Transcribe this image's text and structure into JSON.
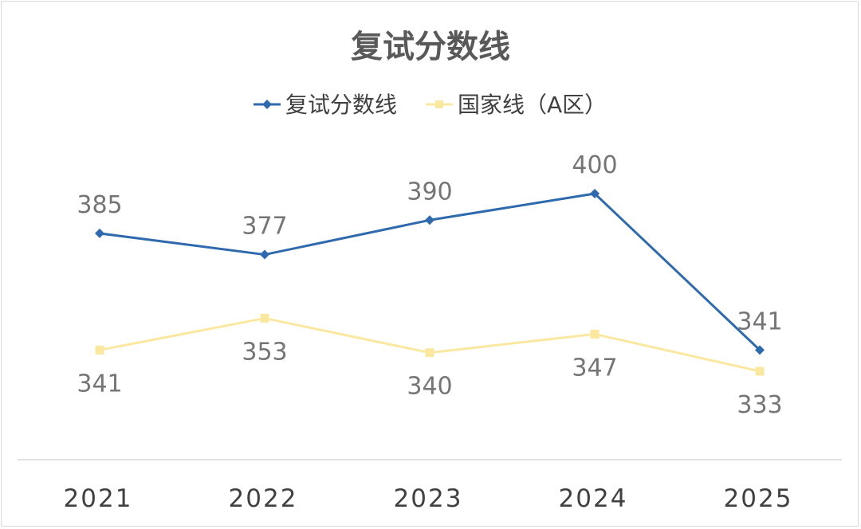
{
  "chart_data": {
    "type": "line",
    "title": "复试分数线",
    "categories": [
      "2021",
      "2022",
      "2023",
      "2024",
      "2025"
    ],
    "series": [
      {
        "name": "复试分数线",
        "values": [
          385,
          377,
          390,
          400,
          341
        ],
        "color": "#2e6aad",
        "marker": "diamond"
      },
      {
        "name": "国家线（A区）",
        "values": [
          341,
          353,
          340,
          347,
          333
        ],
        "color": "#fbe8a0",
        "marker": "square"
      }
    ],
    "ylim": [
      300,
      420
    ],
    "legend_position": "top",
    "grid": false,
    "data_labels": true
  }
}
